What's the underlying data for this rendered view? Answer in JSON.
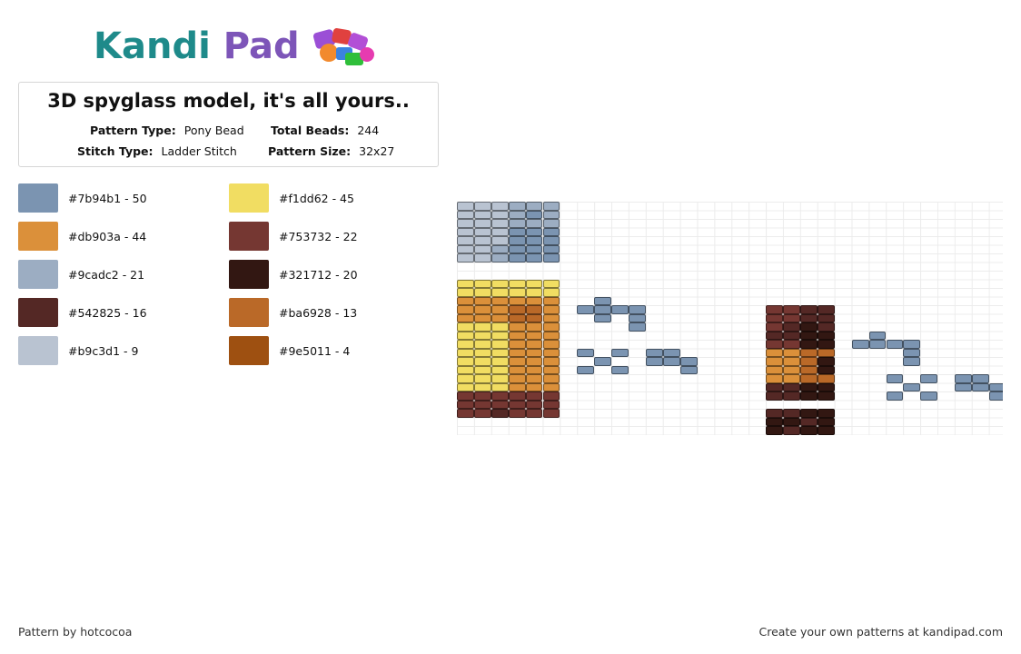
{
  "brand": {
    "logo_text_a": "Kandi",
    "logo_text_b": "Pad"
  },
  "pattern": {
    "title": "3D spyglass model, it's all yours..",
    "type_label": "Pattern Type:",
    "type_value": "Pony Bead",
    "beads_label": "Total Beads:",
    "beads_value": "244",
    "stitch_label": "Stitch Type:",
    "stitch_value": "Ladder Stitch",
    "size_label": "Pattern Size:",
    "size_value": "32x27"
  },
  "legend": [
    {
      "color": "#7b94b1",
      "label": "#7b94b1 - 50"
    },
    {
      "color": "#f1dd62",
      "label": "#f1dd62 - 45"
    },
    {
      "color": "#db903a",
      "label": "#db903a - 44"
    },
    {
      "color": "#753732",
      "label": "#753732 - 22"
    },
    {
      "color": "#9cadc2",
      "label": "#9cadc2 - 21"
    },
    {
      "color": "#321712",
      "label": "#321712 - 20"
    },
    {
      "color": "#542825",
      "label": "#542825 - 16"
    },
    {
      "color": "#ba6928",
      "label": "#ba6928 - 13"
    },
    {
      "color": "#b9c3d1",
      "label": "#b9c3d1 - 9"
    },
    {
      "color": "#9e5011",
      "label": "#9e5011 - 4"
    }
  ],
  "footer": {
    "left": "Pattern by hotcocoa",
    "right": "Create your own patterns at kandipad.com"
  }
}
